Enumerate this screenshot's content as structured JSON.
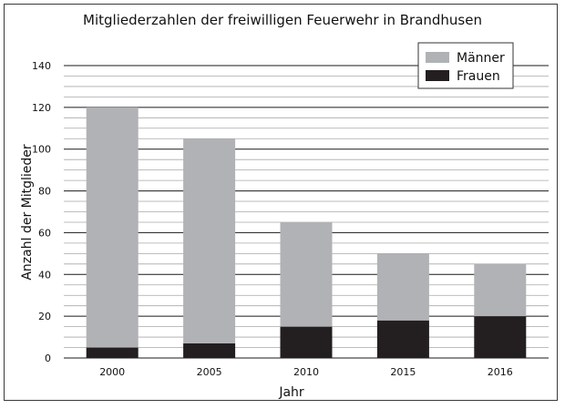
{
  "chart_data": {
    "type": "bar",
    "stacked": true,
    "title": "Mitgliederzahlen der freiwilligen Feuerwehr in Brandhusen",
    "xlabel": "Jahr",
    "ylabel": "Anzahl der Mitglieder",
    "categories": [
      "2000",
      "2005",
      "2010",
      "2015",
      "2016"
    ],
    "series": [
      {
        "name": "Frauen",
        "values": [
          5,
          7,
          15,
          18,
          20
        ],
        "color": "#231f20"
      },
      {
        "name": "Männer",
        "values": [
          115,
          98,
          50,
          32,
          25
        ],
        "color": "#b1b2b5"
      }
    ],
    "ylim": [
      0,
      140
    ],
    "yticks": [
      0,
      20,
      40,
      60,
      80,
      100,
      120,
      140
    ],
    "ytick_labels": [
      "0",
      "20",
      "40",
      "60",
      "80",
      "100",
      "120",
      "140"
    ],
    "minor_grid_step": 5,
    "grid": true,
    "legend": {
      "placement": "top-right",
      "entries": [
        {
          "name": "Männer",
          "color": "#b1b2b5"
        },
        {
          "name": "Frauen",
          "color": "#231f20"
        }
      ]
    }
  }
}
